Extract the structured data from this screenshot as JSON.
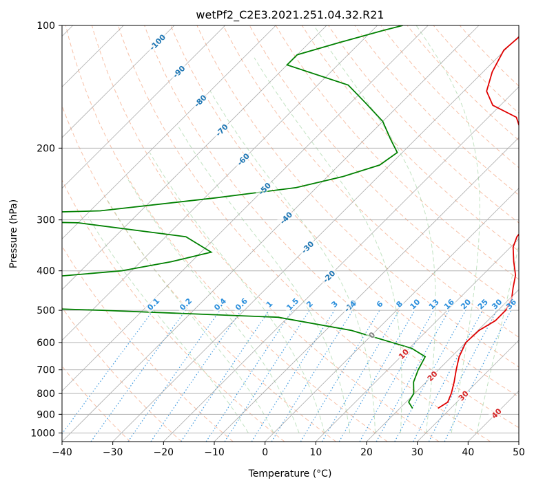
{
  "chart_data": {
    "type": "line",
    "title": "wetPf2_C2E3.2021.251.04.32.R21",
    "xlabel": "Temperature (°C)",
    "ylabel": "Pressure (hPa)",
    "xlim": [
      -40,
      50
    ],
    "ylim": [
      1050,
      100
    ],
    "y_scale": "log",
    "x_ticks": [
      -40,
      -30,
      -20,
      -10,
      0,
      10,
      20,
      30,
      40,
      50
    ],
    "y_ticks": [
      100,
      200,
      300,
      400,
      500,
      600,
      700,
      800,
      900,
      1000
    ],
    "skew_t": true,
    "grid": true,
    "colors": {
      "temperature": "#e00000",
      "dewpoint": "#008000",
      "isotherm": "#999999",
      "dry_adiabat": "#f4a582",
      "moist_adiabat": "#a6d6a6",
      "mixing_ratio": "#2b8fdc",
      "isotherm_label": "#1f77b4",
      "dry_adiabat_label": "#d62728",
      "mixing_label": "#2b8fdc"
    },
    "series": [
      {
        "key": "temperature",
        "points": [
          [
            27.5,
            870
          ],
          [
            28.2,
            840
          ],
          [
            27.2,
            800
          ],
          [
            25.5,
            750
          ],
          [
            23.5,
            700
          ],
          [
            21.5,
            650
          ],
          [
            20,
            600
          ],
          [
            20.2,
            560
          ],
          [
            21.5,
            530
          ],
          [
            21.5,
            500
          ],
          [
            20.5,
            470
          ],
          [
            18.5,
            440
          ],
          [
            16.5,
            410
          ],
          [
            13.5,
            380
          ],
          [
            10.5,
            350
          ],
          [
            9.2,
            330
          ],
          [
            8.5,
            300
          ],
          [
            6.5,
            280
          ],
          [
            3.5,
            260
          ],
          [
            0.5,
            240
          ],
          [
            -2.5,
            220
          ],
          [
            -6,
            200
          ],
          [
            -10,
            185
          ],
          [
            -14.5,
            168
          ],
          [
            -21.5,
            157
          ],
          [
            -25.5,
            145
          ],
          [
            -28.2,
            130
          ],
          [
            -30.2,
            115
          ],
          [
            -29.5,
            100
          ]
        ]
      },
      {
        "key": "dewpoint",
        "points": [
          [
            22.5,
            870
          ],
          [
            20.5,
            840
          ],
          [
            19.8,
            800
          ],
          [
            17.5,
            750
          ],
          [
            16,
            700
          ],
          [
            14.8,
            650
          ],
          [
            10.5,
            620
          ],
          [
            -5,
            560
          ],
          [
            -22,
            520
          ],
          [
            -58,
            500
          ],
          [
            -70,
            495
          ],
          [
            -78,
            492
          ],
          [
            -88,
            488
          ],
          [
            -120,
            440
          ],
          [
            -80,
            420
          ],
          [
            -62,
            400
          ],
          [
            -54,
            380
          ],
          [
            -48,
            360
          ],
          [
            -56,
            330
          ],
          [
            -80,
            305
          ],
          [
            -110,
            300
          ],
          [
            -108,
            292
          ],
          [
            -78,
            285
          ],
          [
            -58,
            265
          ],
          [
            -44,
            250
          ],
          [
            -37,
            235
          ],
          [
            -32,
            220
          ],
          [
            -31,
            205
          ],
          [
            -35,
            190
          ],
          [
            -40,
            172
          ],
          [
            -47,
            155
          ],
          [
            -54,
            140
          ],
          [
            -70,
            125
          ],
          [
            -70,
            118
          ],
          [
            -64,
            110
          ],
          [
            -58,
            103
          ],
          [
            -55,
            100
          ]
        ]
      }
    ],
    "isotherm_labels": [
      "-100",
      "-90",
      "-80",
      "-70",
      "-60",
      "-50",
      "-40",
      "-30",
      "-20",
      "-10",
      "0"
    ],
    "dry_adiabat_labels": [
      "10",
      "20",
      "30",
      "40"
    ],
    "mixing_ratio_labels": [
      "0.1",
      "0.2",
      "0.4",
      "0.6",
      "1",
      "1.5",
      "2",
      "3",
      "4",
      "6",
      "8",
      "10",
      "13",
      "16",
      "20",
      "25",
      "30",
      "36"
    ]
  }
}
